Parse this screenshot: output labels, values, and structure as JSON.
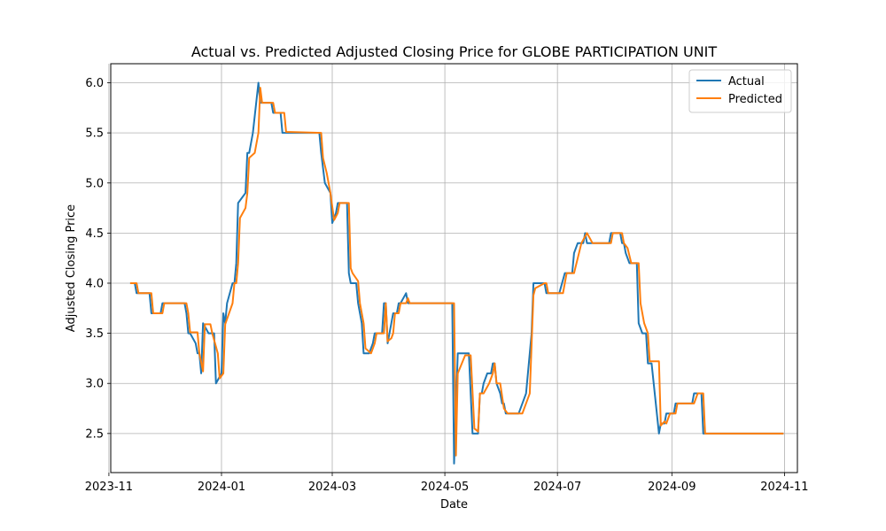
{
  "chart_data": {
    "type": "line",
    "title": "Actual vs. Predicted Adjusted Closing Price for GLOBE PARTICIPATION UNIT",
    "xlabel": "Date",
    "ylabel": "Adjusted Closing Price",
    "xlim": [
      "2023-11-02",
      "2024-11-08"
    ],
    "ylim": [
      2.11,
      6.19
    ],
    "x_ticks": [
      "2023-11-01",
      "2024-01-01",
      "2024-03-01",
      "2024-05-01",
      "2024-07-01",
      "2024-09-01",
      "2024-11-01"
    ],
    "x_tick_labels": [
      "2023-11",
      "2024-01",
      "2024-03",
      "2024-05",
      "2024-07",
      "2024-09",
      "2024-11"
    ],
    "y_ticks": [
      2.5,
      3.0,
      3.5,
      4.0,
      4.5,
      5.0,
      5.5,
      6.0
    ],
    "y_tick_labels": [
      "2.5",
      "3.0",
      "3.5",
      "4.0",
      "4.5",
      "5.0",
      "5.5",
      "6.0"
    ],
    "grid": true,
    "legend_position": "top-right",
    "colors": {
      "actual": "#1f77b4",
      "predicted": "#ff7f0e"
    },
    "series": [
      {
        "name": "Actual",
        "points": [
          [
            "2023-11-13",
            4.0
          ],
          [
            "2023-11-15",
            4.0
          ],
          [
            "2023-11-16",
            3.9
          ],
          [
            "2023-11-23",
            3.9
          ],
          [
            "2023-11-24",
            3.7
          ],
          [
            "2023-11-29",
            3.7
          ],
          [
            "2023-11-30",
            3.8
          ],
          [
            "2023-12-12",
            3.8
          ],
          [
            "2023-12-13",
            3.7
          ],
          [
            "2023-12-14",
            3.5
          ],
          [
            "2023-12-15",
            3.5
          ],
          [
            "2023-12-18",
            3.4
          ],
          [
            "2023-12-19",
            3.3
          ],
          [
            "2023-12-20",
            3.3
          ],
          [
            "2023-12-21",
            3.1
          ],
          [
            "2023-12-22",
            3.6
          ],
          [
            "2023-12-25",
            3.5
          ],
          [
            "2023-12-28",
            3.5
          ],
          [
            "2023-12-29",
            3.0
          ],
          [
            "2024-01-01",
            3.1
          ],
          [
            "2024-01-02",
            3.7
          ],
          [
            "2024-01-03",
            3.6
          ],
          [
            "2024-01-04",
            3.8
          ],
          [
            "2024-01-07",
            4.0
          ],
          [
            "2024-01-08",
            4.0
          ],
          [
            "2024-01-09",
            4.2
          ],
          [
            "2024-01-10",
            4.8
          ],
          [
            "2024-01-14",
            4.9
          ],
          [
            "2024-01-15",
            5.3
          ],
          [
            "2024-01-16",
            5.3
          ],
          [
            "2024-01-18",
            5.5
          ],
          [
            "2024-01-21",
            6.0
          ],
          [
            "2024-01-22",
            5.8
          ],
          [
            "2024-01-28",
            5.8
          ],
          [
            "2024-01-29",
            5.7
          ],
          [
            "2024-02-02",
            5.7
          ],
          [
            "2024-02-03",
            5.5
          ],
          [
            "2024-02-23",
            5.5
          ],
          [
            "2024-02-24",
            5.3
          ],
          [
            "2024-02-26",
            5.0
          ],
          [
            "2024-02-29",
            4.9
          ],
          [
            "2024-03-01",
            4.6
          ],
          [
            "2024-03-03",
            4.7
          ],
          [
            "2024-03-04",
            4.8
          ],
          [
            "2024-03-09",
            4.8
          ],
          [
            "2024-03-10",
            4.1
          ],
          [
            "2024-03-11",
            4.0
          ],
          [
            "2024-03-14",
            4.0
          ],
          [
            "2024-03-15",
            3.8
          ],
          [
            "2024-03-17",
            3.6
          ],
          [
            "2024-03-18",
            3.3
          ],
          [
            "2024-03-21",
            3.3
          ],
          [
            "2024-03-23",
            3.4
          ],
          [
            "2024-03-24",
            3.5
          ],
          [
            "2024-03-28",
            3.5
          ],
          [
            "2024-03-29",
            3.8
          ],
          [
            "2024-03-30",
            3.8
          ],
          [
            "2024-03-31",
            3.4
          ],
          [
            "2024-04-01",
            3.5
          ],
          [
            "2024-04-02",
            3.6
          ],
          [
            "2024-04-03",
            3.7
          ],
          [
            "2024-04-05",
            3.7
          ],
          [
            "2024-04-06",
            3.8
          ],
          [
            "2024-04-07",
            3.8
          ],
          [
            "2024-04-10",
            3.9
          ],
          [
            "2024-04-11",
            3.8
          ],
          [
            "2024-05-05",
            3.8
          ],
          [
            "2024-05-06",
            2.2
          ],
          [
            "2024-05-08",
            3.3
          ],
          [
            "2024-05-14",
            3.3
          ],
          [
            "2024-05-16",
            2.5
          ],
          [
            "2024-05-19",
            2.5
          ],
          [
            "2024-05-20",
            2.9
          ],
          [
            "2024-05-21",
            2.9
          ],
          [
            "2024-05-22",
            3.0
          ],
          [
            "2024-05-24",
            3.1
          ],
          [
            "2024-05-26",
            3.1
          ],
          [
            "2024-05-27",
            3.2
          ],
          [
            "2024-05-28",
            3.2
          ],
          [
            "2024-05-29",
            3.0
          ],
          [
            "2024-05-31",
            2.9
          ],
          [
            "2024-06-01",
            2.8
          ],
          [
            "2024-06-02",
            2.8
          ],
          [
            "2024-06-03",
            2.7
          ],
          [
            "2024-06-10",
            2.7
          ],
          [
            "2024-06-14",
            2.9
          ],
          [
            "2024-06-16",
            3.3
          ],
          [
            "2024-06-17",
            3.5
          ],
          [
            "2024-06-18",
            4.0
          ],
          [
            "2024-06-24",
            4.0
          ],
          [
            "2024-06-25",
            3.9
          ],
          [
            "2024-07-02",
            3.9
          ],
          [
            "2024-07-05",
            4.1
          ],
          [
            "2024-07-09",
            4.1
          ],
          [
            "2024-07-10",
            4.3
          ],
          [
            "2024-07-12",
            4.4
          ],
          [
            "2024-07-15",
            4.4
          ],
          [
            "2024-07-16",
            4.5
          ],
          [
            "2024-07-17",
            4.4
          ],
          [
            "2024-07-29",
            4.4
          ],
          [
            "2024-07-30",
            4.5
          ],
          [
            "2024-08-04",
            4.5
          ],
          [
            "2024-08-05",
            4.4
          ],
          [
            "2024-08-06",
            4.4
          ],
          [
            "2024-08-07",
            4.3
          ],
          [
            "2024-08-09",
            4.2
          ],
          [
            "2024-08-13",
            4.2
          ],
          [
            "2024-08-14",
            3.6
          ],
          [
            "2024-08-16",
            3.5
          ],
          [
            "2024-08-18",
            3.5
          ],
          [
            "2024-08-19",
            3.2
          ],
          [
            "2024-08-21",
            3.2
          ],
          [
            "2024-08-25",
            2.5
          ],
          [
            "2024-08-26",
            2.6
          ],
          [
            "2024-08-28",
            2.6
          ],
          [
            "2024-08-29",
            2.7
          ],
          [
            "2024-09-02",
            2.7
          ],
          [
            "2024-09-03",
            2.8
          ],
          [
            "2024-09-12",
            2.8
          ],
          [
            "2024-09-13",
            2.9
          ],
          [
            "2024-09-17",
            2.9
          ],
          [
            "2024-09-18",
            2.5
          ],
          [
            "2024-10-31",
            2.5
          ]
        ]
      },
      {
        "name": "Predicted",
        "points": [
          [
            "2023-11-13",
            4.0
          ],
          [
            "2023-11-16",
            4.0
          ],
          [
            "2023-11-17",
            3.9
          ],
          [
            "2023-11-24",
            3.9
          ],
          [
            "2023-11-25",
            3.7
          ],
          [
            "2023-11-30",
            3.7
          ],
          [
            "2023-12-01",
            3.8
          ],
          [
            "2023-12-13",
            3.8
          ],
          [
            "2023-12-14",
            3.7
          ],
          [
            "2023-12-15",
            3.51
          ],
          [
            "2023-12-19",
            3.51
          ],
          [
            "2023-12-20",
            3.3
          ],
          [
            "2023-12-22",
            3.12
          ],
          [
            "2023-12-23",
            3.59
          ],
          [
            "2023-12-26",
            3.59
          ],
          [
            "2023-12-27",
            3.5
          ],
          [
            "2023-12-30",
            3.3
          ],
          [
            "2023-12-31",
            3.05
          ],
          [
            "2024-01-02",
            3.1
          ],
          [
            "2024-01-03",
            3.59
          ],
          [
            "2024-01-07",
            3.8
          ],
          [
            "2024-01-08",
            4.0
          ],
          [
            "2024-01-09",
            4.0
          ],
          [
            "2024-01-10",
            4.2
          ],
          [
            "2024-01-11",
            4.65
          ],
          [
            "2024-01-14",
            4.75
          ],
          [
            "2024-01-15",
            4.9
          ],
          [
            "2024-01-16",
            5.25
          ],
          [
            "2024-01-19",
            5.3
          ],
          [
            "2024-01-21",
            5.5
          ],
          [
            "2024-01-22",
            5.95
          ],
          [
            "2024-01-23",
            5.8
          ],
          [
            "2024-01-29",
            5.8
          ],
          [
            "2024-01-30",
            5.7
          ],
          [
            "2024-02-04",
            5.7
          ],
          [
            "2024-02-05",
            5.51
          ],
          [
            "2024-02-24",
            5.5
          ],
          [
            "2024-02-25",
            5.25
          ],
          [
            "2024-02-27",
            5.1
          ],
          [
            "2024-02-29",
            4.9
          ],
          [
            "2024-03-02",
            4.63
          ],
          [
            "2024-03-04",
            4.7
          ],
          [
            "2024-03-05",
            4.8
          ],
          [
            "2024-03-10",
            4.8
          ],
          [
            "2024-03-11",
            4.15
          ],
          [
            "2024-03-12",
            4.1
          ],
          [
            "2024-03-15",
            4.02
          ],
          [
            "2024-03-16",
            3.8
          ],
          [
            "2024-03-18",
            3.6
          ],
          [
            "2024-03-19",
            3.35
          ],
          [
            "2024-03-22",
            3.3
          ],
          [
            "2024-03-24",
            3.4
          ],
          [
            "2024-03-25",
            3.5
          ],
          [
            "2024-03-29",
            3.5
          ],
          [
            "2024-03-30",
            3.8
          ],
          [
            "2024-03-31",
            3.42
          ],
          [
            "2024-04-02",
            3.45
          ],
          [
            "2024-04-03",
            3.5
          ],
          [
            "2024-04-04",
            3.7
          ],
          [
            "2024-04-06",
            3.7
          ],
          [
            "2024-04-07",
            3.8
          ],
          [
            "2024-04-10",
            3.8
          ],
          [
            "2024-04-11",
            3.85
          ],
          [
            "2024-04-12",
            3.8
          ],
          [
            "2024-05-06",
            3.8
          ],
          [
            "2024-05-07",
            2.28
          ],
          [
            "2024-05-08",
            3.1
          ],
          [
            "2024-05-12",
            3.28
          ],
          [
            "2024-05-15",
            3.28
          ],
          [
            "2024-05-17",
            2.55
          ],
          [
            "2024-05-19",
            2.52
          ],
          [
            "2024-05-20",
            2.9
          ],
          [
            "2024-05-22",
            2.9
          ],
          [
            "2024-05-25",
            3.0
          ],
          [
            "2024-05-27",
            3.1
          ],
          [
            "2024-05-28",
            3.2
          ],
          [
            "2024-05-29",
            3.0
          ],
          [
            "2024-05-31",
            3.0
          ],
          [
            "2024-06-02",
            2.75
          ],
          [
            "2024-06-04",
            2.7
          ],
          [
            "2024-06-12",
            2.7
          ],
          [
            "2024-06-16",
            2.9
          ],
          [
            "2024-06-18",
            3.88
          ],
          [
            "2024-06-19",
            3.95
          ],
          [
            "2024-06-24",
            4.0
          ],
          [
            "2024-06-25",
            4.0
          ],
          [
            "2024-06-26",
            3.9
          ],
          [
            "2024-07-04",
            3.9
          ],
          [
            "2024-07-06",
            4.1
          ],
          [
            "2024-07-10",
            4.1
          ],
          [
            "2024-07-14",
            4.4
          ],
          [
            "2024-07-17",
            4.5
          ],
          [
            "2024-07-20",
            4.4
          ],
          [
            "2024-07-30",
            4.4
          ],
          [
            "2024-07-31",
            4.5
          ],
          [
            "2024-08-05",
            4.5
          ],
          [
            "2024-08-06",
            4.4
          ],
          [
            "2024-08-08",
            4.35
          ],
          [
            "2024-08-10",
            4.2
          ],
          [
            "2024-08-14",
            4.2
          ],
          [
            "2024-08-15",
            3.8
          ],
          [
            "2024-08-17",
            3.6
          ],
          [
            "2024-08-19",
            3.5
          ],
          [
            "2024-08-20",
            3.22
          ],
          [
            "2024-08-25",
            3.22
          ],
          [
            "2024-08-26",
            2.58
          ],
          [
            "2024-08-28",
            2.62
          ],
          [
            "2024-08-29",
            2.6
          ],
          [
            "2024-08-31",
            2.7
          ],
          [
            "2024-09-03",
            2.7
          ],
          [
            "2024-09-04",
            2.8
          ],
          [
            "2024-09-13",
            2.8
          ],
          [
            "2024-09-15",
            2.9
          ],
          [
            "2024-09-18",
            2.9
          ],
          [
            "2024-09-19",
            2.5
          ],
          [
            "2024-10-31",
            2.5
          ]
        ]
      }
    ]
  }
}
